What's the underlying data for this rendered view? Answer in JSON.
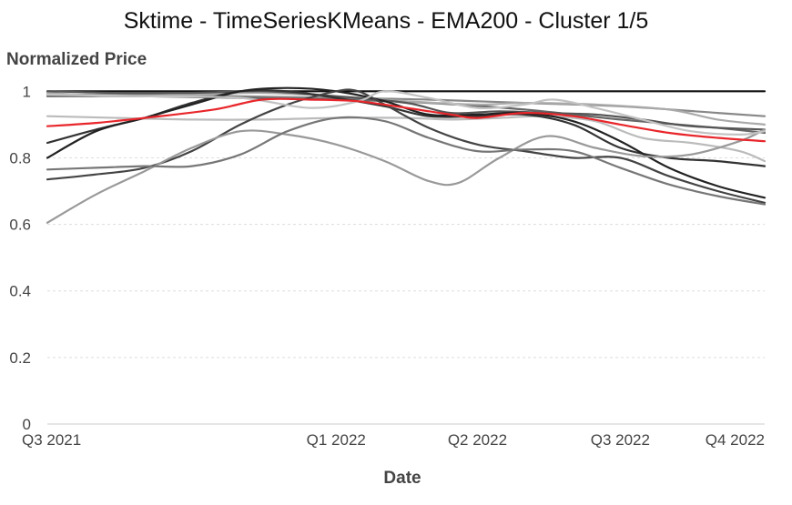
{
  "chart_data": {
    "type": "line",
    "title": "Sktime - TimeSeriesKMeans - EMA200 - Cluster 1/5",
    "xlabel": "Date",
    "ylabel": "Normalized Price",
    "x_range": [
      "2021-07-01",
      "2022-10-01"
    ],
    "x_ticks": [
      {
        "date": "2021-07-01",
        "label": "Q3 2021"
      },
      {
        "date": "2022-01-01",
        "label": "Q1 2022"
      },
      {
        "date": "2022-04-01",
        "label": "Q2 2022"
      },
      {
        "date": "2022-07-01",
        "label": "Q3 2022"
      },
      {
        "date": "2022-10-01",
        "label": "Q4 2022"
      }
    ],
    "ylim": [
      0,
      1.02
    ],
    "y_ticks": [
      0,
      0.2,
      0.4,
      0.6,
      0.8,
      1
    ],
    "y_tick_labels": [
      "0",
      "0.2",
      "0.4",
      "0.6",
      "0.8",
      "1"
    ],
    "grid": true,
    "series": [
      {
        "color": "#111111",
        "points": [
          [
            "2021-07-01",
            1.0
          ],
          [
            "2022-10-01",
            1.0
          ]
        ]
      },
      {
        "color": "#888888",
        "points": [
          [
            "2021-07-01",
            0.99
          ],
          [
            "2021-09-01",
            0.99
          ],
          [
            "2021-11-01",
            0.985
          ],
          [
            "2022-01-01",
            0.98
          ],
          [
            "2022-03-01",
            0.975
          ],
          [
            "2022-05-01",
            0.965
          ],
          [
            "2022-07-01",
            0.955
          ],
          [
            "2022-09-01",
            0.935
          ],
          [
            "2022-10-01",
            0.925
          ]
        ]
      },
      {
        "color": "#666666",
        "points": [
          [
            "2021-07-01",
            0.985
          ],
          [
            "2021-09-01",
            0.985
          ],
          [
            "2021-11-01",
            0.98
          ],
          [
            "2022-01-01",
            0.975
          ],
          [
            "2022-03-01",
            0.965
          ],
          [
            "2022-05-01",
            0.945
          ],
          [
            "2022-07-01",
            0.915
          ],
          [
            "2022-09-01",
            0.89
          ],
          [
            "2022-10-01",
            0.875
          ]
        ]
      },
      {
        "color": "#aaaaaa",
        "points": [
          [
            "2021-07-01",
            0.995
          ],
          [
            "2021-08-15",
            0.985
          ],
          [
            "2021-10-01",
            0.99
          ],
          [
            "2021-11-15",
            0.995
          ],
          [
            "2022-01-01",
            0.985
          ],
          [
            "2022-02-15",
            0.97
          ],
          [
            "2022-04-01",
            0.96
          ],
          [
            "2022-05-01",
            0.965
          ],
          [
            "2022-06-15",
            0.96
          ],
          [
            "2022-08-01",
            0.945
          ],
          [
            "2022-09-01",
            0.915
          ],
          [
            "2022-10-01",
            0.9
          ]
        ]
      },
      {
        "color": "#555555",
        "points": [
          [
            "2021-07-01",
            1.0
          ],
          [
            "2021-08-15",
            0.995
          ],
          [
            "2021-10-01",
            0.995
          ],
          [
            "2021-11-15",
            1.0
          ],
          [
            "2022-01-01",
            0.985
          ],
          [
            "2022-02-15",
            0.965
          ],
          [
            "2022-03-15",
            0.935
          ],
          [
            "2022-04-15",
            0.94
          ],
          [
            "2022-05-15",
            0.935
          ],
          [
            "2022-06-15",
            0.93
          ],
          [
            "2022-07-15",
            0.915
          ],
          [
            "2022-08-15",
            0.895
          ],
          [
            "2022-10-01",
            0.885
          ]
        ]
      },
      {
        "color": "#bbbbbb",
        "points": [
          [
            "2021-07-01",
            0.925
          ],
          [
            "2021-08-15",
            0.92
          ],
          [
            "2021-10-01",
            0.915
          ],
          [
            "2021-11-15",
            0.915
          ],
          [
            "2022-01-01",
            0.92
          ],
          [
            "2022-02-15",
            0.92
          ],
          [
            "2022-03-15",
            0.915
          ],
          [
            "2022-04-15",
            0.92
          ],
          [
            "2022-05-15",
            0.925
          ],
          [
            "2022-06-15",
            0.91
          ],
          [
            "2022-07-15",
            0.86
          ],
          [
            "2022-08-15",
            0.845
          ],
          [
            "2022-09-15",
            0.82
          ],
          [
            "2022-10-01",
            0.79
          ]
        ]
      },
      {
        "color": "#e8262b",
        "points": [
          [
            "2021-07-01",
            0.895
          ],
          [
            "2021-08-01",
            0.905
          ],
          [
            "2021-09-01",
            0.92
          ],
          [
            "2021-10-15",
            0.945
          ],
          [
            "2021-11-15",
            0.975
          ],
          [
            "2021-12-15",
            0.975
          ],
          [
            "2022-01-15",
            0.97
          ],
          [
            "2022-02-15",
            0.95
          ],
          [
            "2022-03-15",
            0.93
          ],
          [
            "2022-04-01",
            0.92
          ],
          [
            "2022-05-01",
            0.935
          ],
          [
            "2022-06-01",
            0.925
          ],
          [
            "2022-07-01",
            0.9
          ],
          [
            "2022-08-01",
            0.875
          ],
          [
            "2022-09-01",
            0.86
          ],
          [
            "2022-10-01",
            0.85
          ]
        ]
      },
      {
        "color": "#333333",
        "points": [
          [
            "2021-07-01",
            0.845
          ],
          [
            "2021-08-01",
            0.885
          ],
          [
            "2021-09-01",
            0.92
          ],
          [
            "2021-10-01",
            0.965
          ],
          [
            "2021-11-01",
            1.0
          ],
          [
            "2021-12-01",
            1.0
          ],
          [
            "2022-01-01",
            0.98
          ],
          [
            "2022-02-01",
            0.955
          ],
          [
            "2022-03-01",
            0.925
          ],
          [
            "2022-04-01",
            0.925
          ],
          [
            "2022-05-01",
            0.93
          ],
          [
            "2022-06-01",
            0.9
          ],
          [
            "2022-07-01",
            0.83
          ],
          [
            "2022-08-01",
            0.8
          ],
          [
            "2022-09-01",
            0.79
          ],
          [
            "2022-10-01",
            0.775
          ]
        ]
      },
      {
        "color": "#222222",
        "points": [
          [
            "2021-07-01",
            0.8
          ],
          [
            "2021-08-01",
            0.88
          ],
          [
            "2021-09-01",
            0.92
          ],
          [
            "2021-10-01",
            0.96
          ],
          [
            "2021-11-01",
            1.0
          ],
          [
            "2021-12-01",
            1.01
          ],
          [
            "2022-01-01",
            1.0
          ],
          [
            "2022-02-01",
            0.97
          ],
          [
            "2022-03-01",
            0.93
          ],
          [
            "2022-04-01",
            0.93
          ],
          [
            "2022-05-01",
            0.935
          ],
          [
            "2022-06-01",
            0.91
          ],
          [
            "2022-07-01",
            0.85
          ],
          [
            "2022-08-01",
            0.77
          ],
          [
            "2022-09-01",
            0.715
          ],
          [
            "2022-10-01",
            0.68
          ]
        ]
      },
      {
        "color": "#444444",
        "points": [
          [
            "2021-07-01",
            0.735
          ],
          [
            "2021-08-01",
            0.75
          ],
          [
            "2021-09-01",
            0.77
          ],
          [
            "2021-10-01",
            0.82
          ],
          [
            "2021-11-01",
            0.9
          ],
          [
            "2021-12-01",
            0.96
          ],
          [
            "2022-01-01",
            1.0
          ],
          [
            "2022-01-15",
            1.0
          ],
          [
            "2022-02-01",
            0.96
          ],
          [
            "2022-03-01",
            0.89
          ],
          [
            "2022-04-01",
            0.84
          ],
          [
            "2022-05-01",
            0.82
          ],
          [
            "2022-06-01",
            0.8
          ],
          [
            "2022-07-01",
            0.8
          ],
          [
            "2022-08-01",
            0.745
          ],
          [
            "2022-09-01",
            0.7
          ],
          [
            "2022-10-01",
            0.665
          ]
        ]
      },
      {
        "color": "#999999",
        "points": [
          [
            "2021-07-01",
            0.605
          ],
          [
            "2021-08-01",
            0.69
          ],
          [
            "2021-09-01",
            0.76
          ],
          [
            "2021-10-01",
            0.83
          ],
          [
            "2021-11-01",
            0.88
          ],
          [
            "2021-12-01",
            0.87
          ],
          [
            "2022-01-01",
            0.84
          ],
          [
            "2022-02-01",
            0.79
          ],
          [
            "2022-03-01",
            0.73
          ],
          [
            "2022-03-20",
            0.725
          ],
          [
            "2022-04-15",
            0.8
          ],
          [
            "2022-05-15",
            0.865
          ],
          [
            "2022-06-15",
            0.83
          ],
          [
            "2022-07-15",
            0.805
          ],
          [
            "2022-08-15",
            0.81
          ],
          [
            "2022-09-15",
            0.85
          ],
          [
            "2022-10-01",
            0.885
          ]
        ]
      },
      {
        "color": "#777777",
        "points": [
          [
            "2021-07-01",
            0.765
          ],
          [
            "2021-08-01",
            0.77
          ],
          [
            "2021-09-01",
            0.775
          ],
          [
            "2021-10-01",
            0.775
          ],
          [
            "2021-11-01",
            0.81
          ],
          [
            "2021-12-01",
            0.88
          ],
          [
            "2022-01-01",
            0.92
          ],
          [
            "2022-02-01",
            0.91
          ],
          [
            "2022-03-01",
            0.86
          ],
          [
            "2022-04-01",
            0.82
          ],
          [
            "2022-05-01",
            0.825
          ],
          [
            "2022-06-01",
            0.82
          ],
          [
            "2022-07-01",
            0.77
          ],
          [
            "2022-08-01",
            0.72
          ],
          [
            "2022-09-01",
            0.685
          ],
          [
            "2022-10-01",
            0.66
          ]
        ]
      },
      {
        "color": "#c2c2c2",
        "points": [
          [
            "2021-07-01",
            0.99
          ],
          [
            "2021-09-01",
            0.985
          ],
          [
            "2021-11-01",
            0.98
          ],
          [
            "2021-12-15",
            0.95
          ],
          [
            "2022-01-15",
            0.97
          ],
          [
            "2022-02-01",
            1.0
          ],
          [
            "2022-03-01",
            0.98
          ],
          [
            "2022-04-01",
            0.95
          ],
          [
            "2022-05-01",
            0.96
          ],
          [
            "2022-05-20",
            0.975
          ],
          [
            "2022-06-15",
            0.95
          ],
          [
            "2022-07-15",
            0.915
          ],
          [
            "2022-08-15",
            0.88
          ],
          [
            "2022-09-15",
            0.87
          ],
          [
            "2022-10-01",
            0.88
          ]
        ]
      }
    ]
  }
}
